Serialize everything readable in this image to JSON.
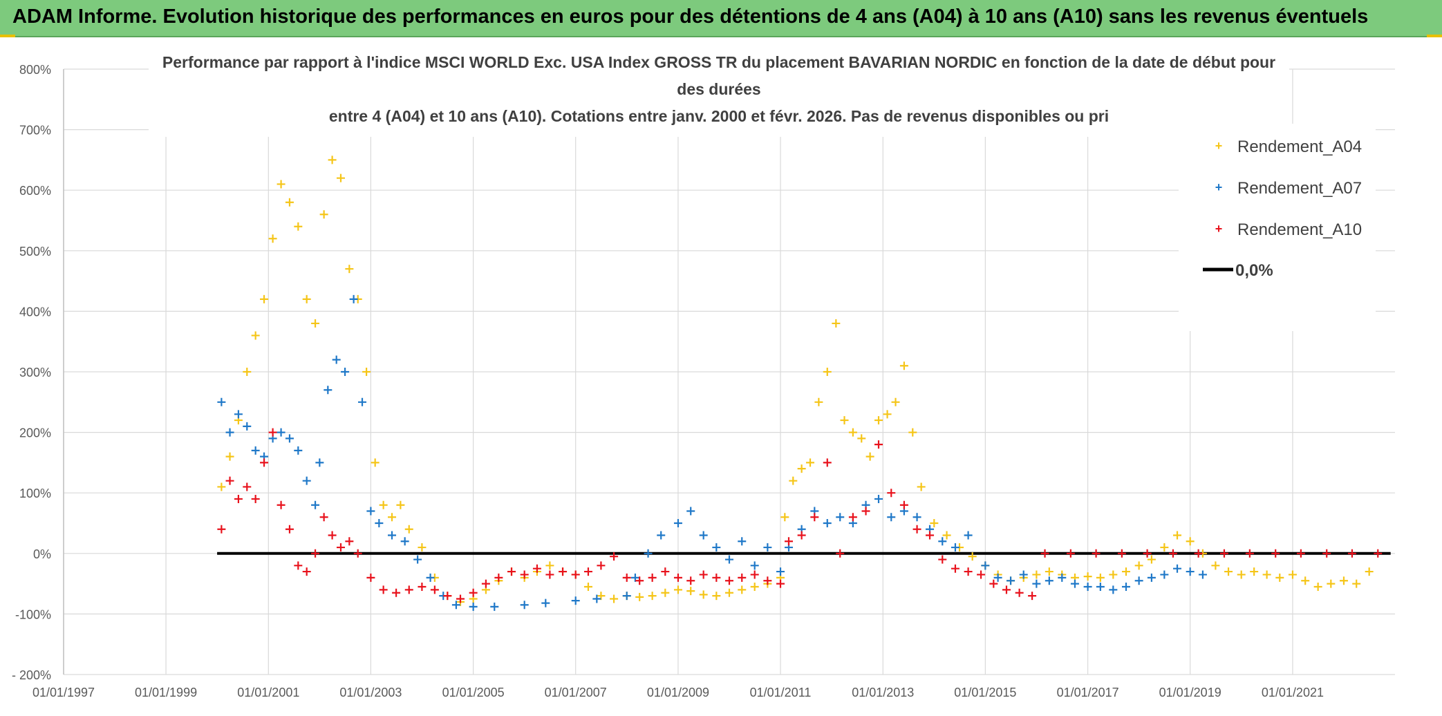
{
  "banner": {
    "title": "ADAM Informe. Evolution historique des performances en euros pour des détentions de 4 ans (A04) à 10 ans (A10) sans les revenus éventuels",
    "background": "#7dca7d"
  },
  "chart_data": {
    "type": "scatter",
    "title": [
      "Performance par rapport à l'indice MSCI WORLD Exc. USA Index GROSS TR  du placement BAVARIAN NORDIC en fonction de la date de début pour",
      "des durées",
      "entre 4 (A04) et 10 ans (A10). Cotations entre janv. 2000 et févr. 2026. Pas de revenus disponibles ou pri"
    ],
    "xlabel": "",
    "ylabel": "",
    "x_ticks": [
      "01/01/1997",
      "01/01/1999",
      "01/01/2001",
      "01/01/2003",
      "01/01/2005",
      "01/01/2007",
      "01/01/2009",
      "01/01/2011",
      "01/01/2013",
      "01/01/2015",
      "01/01/2017",
      "01/01/2019",
      "01/01/2021"
    ],
    "x_range": [
      "1997-01-01",
      "2023-01-01"
    ],
    "y_ticks": [
      "800%",
      "700%",
      "600%",
      "500%",
      "400%",
      "300%",
      "200%",
      "100%",
      "0%",
      "-100%",
      "- 200%"
    ],
    "y_range": [
      -200,
      800
    ],
    "y_unit": "%",
    "grid": true,
    "legend_position": "top-right",
    "series": [
      {
        "name": "Rendement_A04",
        "color": "#f5c518",
        "marker": "plus",
        "points": [
          [
            "2000-02-01",
            110
          ],
          [
            "2000-04-01",
            160
          ],
          [
            "2000-06-01",
            220
          ],
          [
            "2000-08-01",
            300
          ],
          [
            "2000-10-01",
            360
          ],
          [
            "2000-12-01",
            420
          ],
          [
            "2001-02-01",
            520
          ],
          [
            "2001-04-01",
            610
          ],
          [
            "2001-06-01",
            580
          ],
          [
            "2001-08-01",
            540
          ],
          [
            "2001-10-01",
            420
          ],
          [
            "2001-12-01",
            380
          ],
          [
            "2002-02-01",
            560
          ],
          [
            "2002-04-01",
            650
          ],
          [
            "2002-06-01",
            620
          ],
          [
            "2002-08-01",
            470
          ],
          [
            "2002-10-01",
            420
          ],
          [
            "2002-12-01",
            300
          ],
          [
            "2003-02-01",
            150
          ],
          [
            "2003-04-01",
            80
          ],
          [
            "2003-06-01",
            60
          ],
          [
            "2003-08-01",
            80
          ],
          [
            "2003-10-01",
            40
          ],
          [
            "2004-01-01",
            10
          ],
          [
            "2004-04-01",
            -40
          ],
          [
            "2004-07-01",
            -70
          ],
          [
            "2004-10-01",
            -80
          ],
          [
            "2005-01-01",
            -75
          ],
          [
            "2005-04-01",
            -60
          ],
          [
            "2005-07-01",
            -45
          ],
          [
            "2005-10-01",
            -30
          ],
          [
            "2006-01-01",
            -40
          ],
          [
            "2006-04-01",
            -30
          ],
          [
            "2006-07-01",
            -20
          ],
          [
            "2006-10-01",
            -30
          ],
          [
            "2007-01-01",
            -35
          ],
          [
            "2007-04-01",
            -55
          ],
          [
            "2007-07-01",
            -70
          ],
          [
            "2007-10-01",
            -75
          ],
          [
            "2008-01-01",
            -70
          ],
          [
            "2008-04-01",
            -72
          ],
          [
            "2008-07-01",
            -70
          ],
          [
            "2008-10-01",
            -65
          ],
          [
            "2009-01-01",
            -60
          ],
          [
            "2009-04-01",
            -62
          ],
          [
            "2009-07-01",
            -68
          ],
          [
            "2009-10-01",
            -70
          ],
          [
            "2010-01-01",
            -65
          ],
          [
            "2010-04-01",
            -60
          ],
          [
            "2010-07-01",
            -55
          ],
          [
            "2010-10-01",
            -50
          ],
          [
            "2011-01-01",
            -40
          ],
          [
            "2011-02-01",
            60
          ],
          [
            "2011-04-01",
            120
          ],
          [
            "2011-06-01",
            140
          ],
          [
            "2011-08-01",
            150
          ],
          [
            "2011-10-01",
            250
          ],
          [
            "2011-12-01",
            300
          ],
          [
            "2012-02-01",
            380
          ],
          [
            "2012-04-01",
            220
          ],
          [
            "2012-06-01",
            200
          ],
          [
            "2012-08-01",
            190
          ],
          [
            "2012-10-01",
            160
          ],
          [
            "2012-12-01",
            220
          ],
          [
            "2013-02-01",
            230
          ],
          [
            "2013-04-01",
            250
          ],
          [
            "2013-06-01",
            310
          ],
          [
            "2013-08-01",
            200
          ],
          [
            "2013-10-01",
            110
          ],
          [
            "2014-01-01",
            50
          ],
          [
            "2014-04-01",
            30
          ],
          [
            "2014-07-01",
            10
          ],
          [
            "2014-10-01",
            -5
          ],
          [
            "2015-01-01",
            -20
          ],
          [
            "2015-04-01",
            -35
          ],
          [
            "2015-07-01",
            -45
          ],
          [
            "2015-10-01",
            -40
          ],
          [
            "2016-01-01",
            -35
          ],
          [
            "2016-04-01",
            -30
          ],
          [
            "2016-07-01",
            -35
          ],
          [
            "2016-10-01",
            -40
          ],
          [
            "2017-01-01",
            -38
          ],
          [
            "2017-04-01",
            -40
          ],
          [
            "2017-07-01",
            -35
          ],
          [
            "2017-10-01",
            -30
          ],
          [
            "2018-01-01",
            -20
          ],
          [
            "2018-04-01",
            -10
          ],
          [
            "2018-07-01",
            10
          ],
          [
            "2018-10-01",
            30
          ],
          [
            "2019-01-01",
            20
          ],
          [
            "2019-04-01",
            0
          ],
          [
            "2019-07-01",
            -20
          ],
          [
            "2019-10-01",
            -30
          ],
          [
            "2020-01-01",
            -35
          ],
          [
            "2020-04-01",
            -30
          ],
          [
            "2020-07-01",
            -35
          ],
          [
            "2020-10-01",
            -40
          ],
          [
            "2021-01-01",
            -35
          ],
          [
            "2021-04-01",
            -45
          ],
          [
            "2021-07-01",
            -55
          ],
          [
            "2021-10-01",
            -50
          ],
          [
            "2022-01-01",
            -45
          ],
          [
            "2022-04-01",
            -50
          ],
          [
            "2022-07-01",
            -30
          ]
        ]
      },
      {
        "name": "Rendement_A07",
        "color": "#1f78c8",
        "marker": "plus",
        "points": [
          [
            "2000-02-01",
            250
          ],
          [
            "2000-04-01",
            200
          ],
          [
            "2000-06-01",
            230
          ],
          [
            "2000-08-01",
            210
          ],
          [
            "2000-10-01",
            170
          ],
          [
            "2000-12-01",
            160
          ],
          [
            "2001-02-01",
            190
          ],
          [
            "2001-04-01",
            200
          ],
          [
            "2001-06-01",
            190
          ],
          [
            "2001-08-01",
            170
          ],
          [
            "2001-10-01",
            120
          ],
          [
            "2001-12-01",
            80
          ],
          [
            "2002-01-01",
            150
          ],
          [
            "2002-03-01",
            270
          ],
          [
            "2002-05-01",
            320
          ],
          [
            "2002-07-01",
            300
          ],
          [
            "2002-09-01",
            420
          ],
          [
            "2002-11-01",
            250
          ],
          [
            "2003-01-01",
            70
          ],
          [
            "2003-03-01",
            50
          ],
          [
            "2003-06-01",
            30
          ],
          [
            "2003-09-01",
            20
          ],
          [
            "2003-12-01",
            -10
          ],
          [
            "2004-03-01",
            -40
          ],
          [
            "2004-06-01",
            -70
          ],
          [
            "2004-09-01",
            -85
          ],
          [
            "2005-01-01",
            -88
          ],
          [
            "2005-06-01",
            -88
          ],
          [
            "2006-01-01",
            -85
          ],
          [
            "2006-06-01",
            -82
          ],
          [
            "2007-01-01",
            -78
          ],
          [
            "2007-06-01",
            -75
          ],
          [
            "2008-01-01",
            -70
          ],
          [
            "2008-03-01",
            -40
          ],
          [
            "2008-06-01",
            0
          ],
          [
            "2008-09-01",
            30
          ],
          [
            "2009-01-01",
            50
          ],
          [
            "2009-04-01",
            70
          ],
          [
            "2009-07-01",
            30
          ],
          [
            "2009-10-01",
            10
          ],
          [
            "2010-01-01",
            -10
          ],
          [
            "2010-04-01",
            20
          ],
          [
            "2010-07-01",
            -20
          ],
          [
            "2010-10-01",
            10
          ],
          [
            "2011-01-01",
            -30
          ],
          [
            "2011-03-01",
            10
          ],
          [
            "2011-06-01",
            40
          ],
          [
            "2011-09-01",
            70
          ],
          [
            "2011-12-01",
            50
          ],
          [
            "2012-03-01",
            60
          ],
          [
            "2012-06-01",
            50
          ],
          [
            "2012-09-01",
            80
          ],
          [
            "2012-12-01",
            90
          ],
          [
            "2013-03-01",
            60
          ],
          [
            "2013-06-01",
            70
          ],
          [
            "2013-09-01",
            60
          ],
          [
            "2013-12-01",
            40
          ],
          [
            "2014-03-01",
            20
          ],
          [
            "2014-06-01",
            10
          ],
          [
            "2014-09-01",
            30
          ],
          [
            "2015-01-01",
            -20
          ],
          [
            "2015-04-01",
            -40
          ],
          [
            "2015-07-01",
            -45
          ],
          [
            "2015-10-01",
            -35
          ],
          [
            "2016-01-01",
            -50
          ],
          [
            "2016-04-01",
            -45
          ],
          [
            "2016-07-01",
            -40
          ],
          [
            "2016-10-01",
            -50
          ],
          [
            "2017-01-01",
            -55
          ],
          [
            "2017-04-01",
            -55
          ],
          [
            "2017-07-01",
            -60
          ],
          [
            "2017-10-01",
            -55
          ],
          [
            "2018-01-01",
            -45
          ],
          [
            "2018-04-01",
            -40
          ],
          [
            "2018-07-01",
            -35
          ],
          [
            "2018-10-01",
            -25
          ],
          [
            "2019-01-01",
            -30
          ],
          [
            "2019-04-01",
            -35
          ]
        ]
      },
      {
        "name": "Rendement_A10",
        "color": "#e8121c",
        "marker": "plus",
        "points": [
          [
            "2000-02-01",
            40
          ],
          [
            "2000-04-01",
            120
          ],
          [
            "2000-06-01",
            90
          ],
          [
            "2000-08-01",
            110
          ],
          [
            "2000-10-01",
            90
          ],
          [
            "2000-12-01",
            150
          ],
          [
            "2001-02-01",
            200
          ],
          [
            "2001-04-01",
            80
          ],
          [
            "2001-06-01",
            40
          ],
          [
            "2001-08-01",
            -20
          ],
          [
            "2001-10-01",
            -30
          ],
          [
            "2001-12-01",
            0
          ],
          [
            "2002-02-01",
            60
          ],
          [
            "2002-04-01",
            30
          ],
          [
            "2002-06-01",
            10
          ],
          [
            "2002-08-01",
            20
          ],
          [
            "2002-10-01",
            0
          ],
          [
            "2003-01-01",
            -40
          ],
          [
            "2003-04-01",
            -60
          ],
          [
            "2003-07-01",
            -65
          ],
          [
            "2003-10-01",
            -60
          ],
          [
            "2004-01-01",
            -55
          ],
          [
            "2004-04-01",
            -60
          ],
          [
            "2004-07-01",
            -70
          ],
          [
            "2004-10-01",
            -75
          ],
          [
            "2005-01-01",
            -65
          ],
          [
            "2005-04-01",
            -50
          ],
          [
            "2005-07-01",
            -40
          ],
          [
            "2005-10-01",
            -30
          ],
          [
            "2006-01-01",
            -35
          ],
          [
            "2006-04-01",
            -25
          ],
          [
            "2006-07-01",
            -35
          ],
          [
            "2006-10-01",
            -30
          ],
          [
            "2007-01-01",
            -35
          ],
          [
            "2007-04-01",
            -30
          ],
          [
            "2007-07-01",
            -20
          ],
          [
            "2007-10-01",
            -5
          ],
          [
            "2008-01-01",
            -40
          ],
          [
            "2008-04-01",
            -45
          ],
          [
            "2008-07-01",
            -40
          ],
          [
            "2008-10-01",
            -30
          ],
          [
            "2009-01-01",
            -40
          ],
          [
            "2009-04-01",
            -45
          ],
          [
            "2009-07-01",
            -35
          ],
          [
            "2009-10-01",
            -40
          ],
          [
            "2010-01-01",
            -45
          ],
          [
            "2010-04-01",
            -40
          ],
          [
            "2010-07-01",
            -35
          ],
          [
            "2010-10-01",
            -45
          ],
          [
            "2011-01-01",
            -50
          ],
          [
            "2011-03-01",
            20
          ],
          [
            "2011-06-01",
            30
          ],
          [
            "2011-09-01",
            60
          ],
          [
            "2011-12-01",
            150
          ],
          [
            "2012-03-01",
            0
          ],
          [
            "2012-06-01",
            60
          ],
          [
            "2012-09-01",
            70
          ],
          [
            "2012-12-01",
            180
          ],
          [
            "2013-03-01",
            100
          ],
          [
            "2013-06-01",
            80
          ],
          [
            "2013-09-01",
            40
          ],
          [
            "2013-12-01",
            30
          ],
          [
            "2014-03-01",
            -10
          ],
          [
            "2014-06-01",
            -25
          ],
          [
            "2014-09-01",
            -30
          ],
          [
            "2014-12-01",
            -35
          ],
          [
            "2015-03-01",
            -50
          ],
          [
            "2015-06-01",
            -60
          ],
          [
            "2015-09-01",
            -65
          ],
          [
            "2015-12-01",
            -70
          ],
          [
            "2016-03-01",
            0
          ],
          [
            "2016-09-01",
            0
          ],
          [
            "2017-03-01",
            0
          ],
          [
            "2017-09-01",
            0
          ],
          [
            "2018-03-01",
            0
          ],
          [
            "2018-09-01",
            0
          ],
          [
            "2019-03-01",
            0
          ],
          [
            "2019-09-01",
            0
          ],
          [
            "2020-03-01",
            0
          ],
          [
            "2020-09-01",
            0
          ],
          [
            "2021-03-01",
            0
          ],
          [
            "2021-09-01",
            0
          ],
          [
            "2022-03-01",
            0
          ],
          [
            "2022-09-01",
            0
          ]
        ]
      }
    ],
    "reference_line": {
      "name": "0,0%",
      "value": 0,
      "x_from": "2000-01-01",
      "x_to": "2022-12-01",
      "color": "#000000"
    },
    "legend": [
      "Rendement_A04",
      "Rendement_A07",
      "Rendement_A10",
      "0,0%"
    ]
  }
}
